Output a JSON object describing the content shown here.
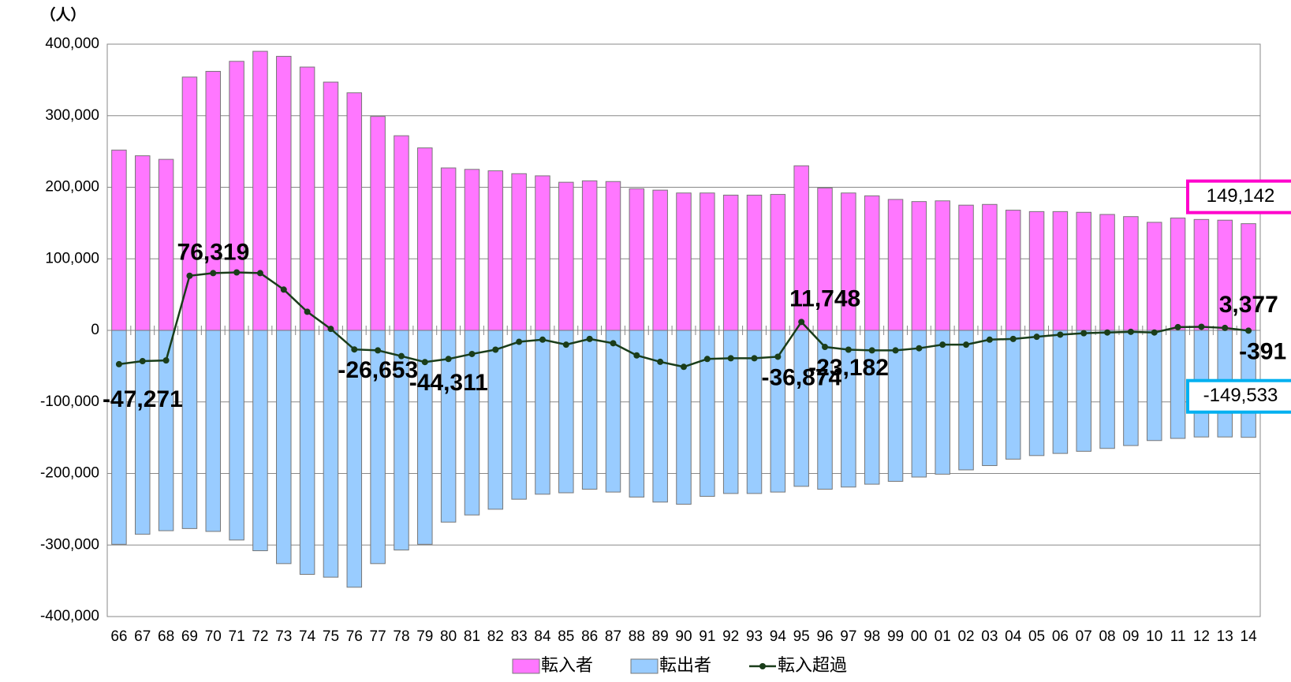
{
  "chart_data": {
    "type": "bar",
    "y_label": "（人）",
    "categories": [
      "66",
      "67",
      "68",
      "69",
      "70",
      "71",
      "72",
      "73",
      "74",
      "75",
      "76",
      "77",
      "78",
      "79",
      "80",
      "81",
      "82",
      "83",
      "84",
      "85",
      "86",
      "87",
      "88",
      "89",
      "90",
      "91",
      "92",
      "93",
      "94",
      "95",
      "96",
      "97",
      "98",
      "99",
      "00",
      "01",
      "02",
      "03",
      "04",
      "05",
      "06",
      "07",
      "08",
      "09",
      "10",
      "11",
      "12",
      "13",
      "14"
    ],
    "series": [
      {
        "name": "転入者",
        "type": "bar",
        "color": "#ff77ff",
        "box_color": "#ff00cc",
        "values": [
          252000,
          244000,
          239000,
          354000,
          362000,
          376000,
          390000,
          383000,
          368000,
          347000,
          332000,
          299000,
          272000,
          255000,
          227000,
          225000,
          223000,
          219000,
          216000,
          207000,
          209000,
          208000,
          198000,
          196000,
          192000,
          192000,
          189000,
          189000,
          190000,
          230000,
          199000,
          192000,
          188000,
          183000,
          180000,
          181000,
          175000,
          176000,
          168000,
          166000,
          166000,
          165000,
          162000,
          159000,
          151000,
          157000,
          155000,
          154000,
          149142
        ],
        "value_labels": [
          null,
          null,
          null,
          null,
          null,
          null,
          null,
          null,
          null,
          null,
          null,
          null,
          null,
          null,
          null,
          null,
          null,
          null,
          null,
          null,
          null,
          null,
          null,
          null,
          null,
          null,
          null,
          null,
          null,
          null,
          null,
          null,
          null,
          null,
          null,
          null,
          null,
          null,
          null,
          null,
          null,
          null,
          null,
          null,
          null,
          null,
          null,
          null,
          "149,142"
        ]
      },
      {
        "name": "転出者",
        "type": "bar",
        "color": "#99ccff",
        "box_color": "#00b0f0",
        "values": [
          -299000,
          -285000,
          -280000,
          -277000,
          -281000,
          -293000,
          -308000,
          -326000,
          -341000,
          -345000,
          -359000,
          -326000,
          -307000,
          -299000,
          -268000,
          -258000,
          -250000,
          -236000,
          -229000,
          -227000,
          -222000,
          -226000,
          -233000,
          -240000,
          -243000,
          -232000,
          -228000,
          -228000,
          -226000,
          -218000,
          -222000,
          -219000,
          -215000,
          -211000,
          -205000,
          -201000,
          -195000,
          -189000,
          -180000,
          -175000,
          -172000,
          -169000,
          -165000,
          -161000,
          -154000,
          -151000,
          -149000,
          -149000,
          -149533
        ],
        "value_labels": [
          null,
          null,
          null,
          null,
          null,
          null,
          null,
          null,
          null,
          null,
          null,
          null,
          null,
          null,
          null,
          null,
          null,
          null,
          null,
          null,
          null,
          null,
          null,
          null,
          null,
          null,
          null,
          null,
          null,
          null,
          null,
          null,
          null,
          null,
          null,
          null,
          null,
          null,
          null,
          null,
          null,
          null,
          null,
          null,
          null,
          null,
          null,
          null,
          "-149,533"
        ]
      },
      {
        "name": "転入超過",
        "type": "line",
        "color": "#1a3d1a",
        "values": [
          -47271,
          -43000,
          -42000,
          76319,
          80000,
          81000,
          80000,
          57000,
          26000,
          2000,
          -26653,
          -28000,
          -36000,
          -44311,
          -40000,
          -33000,
          -27000,
          -16000,
          -13000,
          -20000,
          -12000,
          -18000,
          -35000,
          -44000,
          -51000,
          -40000,
          -39000,
          -39000,
          -36874,
          11748,
          -23182,
          -27000,
          -28000,
          -28000,
          -25000,
          -20000,
          -20000,
          -13000,
          -12000,
          -9000,
          -6000,
          -4000,
          -3000,
          -2000,
          -3000,
          4500,
          5000,
          3377,
          -391
        ],
        "value_labels": [
          "-47,271",
          null,
          null,
          "76,319",
          null,
          null,
          null,
          null,
          null,
          null,
          "-26,653",
          null,
          null,
          "-44,311",
          null,
          null,
          null,
          null,
          null,
          null,
          null,
          null,
          null,
          null,
          null,
          null,
          null,
          null,
          "-36,874",
          "11,748",
          "-23,182",
          null,
          null,
          null,
          null,
          null,
          null,
          null,
          null,
          null,
          null,
          null,
          null,
          null,
          null,
          null,
          null,
          "3,377",
          "-391"
        ]
      }
    ],
    "ylim": [
      -400000,
      400000
    ],
    "yticks": [
      {
        "value": 400000,
        "label": "400,000"
      },
      {
        "value": 300000,
        "label": "300,000"
      },
      {
        "value": 200000,
        "label": "200,000"
      },
      {
        "value": 100000,
        "label": "100,000"
      },
      0,
      {
        "value": -100000,
        "label": "-100,000"
      },
      {
        "value": -200000,
        "label": "-200,000"
      },
      {
        "value": -300000,
        "label": "-300,000"
      },
      {
        "value": -400000,
        "label": "-400,000"
      }
    ],
    "grid": true,
    "legend": "bottom"
  }
}
